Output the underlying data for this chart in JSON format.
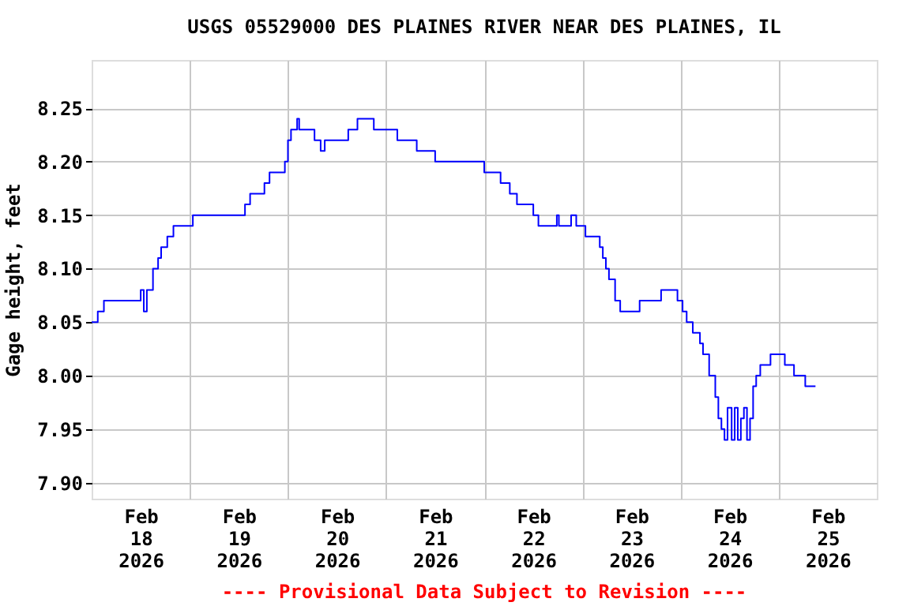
{
  "chart_data": {
    "type": "step",
    "title": "USGS 05529000 DES PLAINES RIVER NEAR DES PLAINES, IL",
    "ylabel": "Gage height, feet",
    "annotations": [
      "---- Provisional Data Subject to Revision ----"
    ],
    "x": [
      "2026-02-18T00:00",
      "2026-02-18T01:30",
      "2026-02-18T03:00",
      "2026-02-18T11:30",
      "2026-02-18T12:00",
      "2026-02-18T12:45",
      "2026-02-18T13:30",
      "2026-02-18T14:15",
      "2026-02-18T15:00",
      "2026-02-18T16:15",
      "2026-02-18T17:00",
      "2026-02-18T18:30",
      "2026-02-18T20:00",
      "2026-02-18T23:30",
      "2026-02-19T00:45",
      "2026-02-19T13:15",
      "2026-02-19T13:30",
      "2026-02-19T14:45",
      "2026-02-19T18:15",
      "2026-02-19T19:30",
      "2026-02-19T22:30",
      "2026-02-19T23:15",
      "2026-02-20T00:00",
      "2026-02-20T00:45",
      "2026-02-20T02:15",
      "2026-02-20T02:45",
      "2026-02-20T06:15",
      "2026-02-20T06:30",
      "2026-02-20T08:00",
      "2026-02-20T09:00",
      "2026-02-20T12:45",
      "2026-02-20T14:45",
      "2026-02-20T17:00",
      "2026-02-20T19:15",
      "2026-02-20T21:00",
      "2026-02-21T02:15",
      "2026-02-21T02:45",
      "2026-02-21T07:00",
      "2026-02-21T07:30",
      "2026-02-21T11:30",
      "2026-02-21T12:00",
      "2026-02-21T23:30",
      "2026-02-22T00:00",
      "2026-02-22T03:30",
      "2026-02-22T04:00",
      "2026-02-22T05:45",
      "2026-02-22T06:15",
      "2026-02-22T08:00",
      "2026-02-22T11:30",
      "2026-02-22T12:00",
      "2026-02-22T13:15",
      "2026-02-22T17:30",
      "2026-02-22T17:45",
      "2026-02-22T18:15",
      "2026-02-22T21:15",
      "2026-02-22T22:30",
      "2026-02-23T00:45",
      "2026-02-23T04:15",
      "2026-02-23T05:00",
      "2026-02-23T05:45",
      "2026-02-23T06:30",
      "2026-02-23T08:00",
      "2026-02-23T09:15",
      "2026-02-23T13:15",
      "2026-02-23T14:00",
      "2026-02-23T19:00",
      "2026-02-23T19:15",
      "2026-02-23T22:30",
      "2026-02-23T23:15",
      "2026-02-24T00:30",
      "2026-02-24T01:30",
      "2026-02-24T03:00",
      "2026-02-24T04:45",
      "2026-02-24T05:30",
      "2026-02-24T07:00",
      "2026-02-24T08:30",
      "2026-02-24T09:15",
      "2026-02-24T10:00",
      "2026-02-24T10:45",
      "2026-02-24T11:30",
      "2026-02-24T12:30",
      "2026-02-24T13:15",
      "2026-02-24T14:00",
      "2026-02-24T14:45",
      "2026-02-24T15:30",
      "2026-02-24T16:15",
      "2026-02-24T17:00",
      "2026-02-24T17:45",
      "2026-02-24T18:30",
      "2026-02-24T19:30",
      "2026-02-24T22:00",
      "2026-02-25T01:30",
      "2026-02-25T03:45",
      "2026-02-25T06:30",
      "2026-02-25T09:00"
    ],
    "series": [
      {
        "color": "#0000ff",
        "values": [
          8.05,
          8.06,
          8.07,
          8.07,
          8.08,
          8.06,
          8.08,
          8.08,
          8.1,
          8.11,
          8.12,
          8.13,
          8.14,
          8.14,
          8.15,
          8.15,
          8.16,
          8.17,
          8.18,
          8.19,
          8.19,
          8.2,
          8.22,
          8.23,
          8.24,
          8.23,
          8.23,
          8.22,
          8.21,
          8.22,
          8.22,
          8.23,
          8.24,
          8.24,
          8.23,
          8.23,
          8.22,
          8.22,
          8.21,
          8.21,
          8.2,
          8.2,
          8.19,
          8.19,
          8.18,
          8.18,
          8.17,
          8.16,
          8.16,
          8.15,
          8.14,
          8.14,
          8.15,
          8.14,
          8.15,
          8.14,
          8.13,
          8.12,
          8.11,
          8.1,
          8.09,
          8.07,
          8.06,
          8.06,
          8.07,
          8.07,
          8.08,
          8.08,
          8.07,
          8.06,
          8.05,
          8.04,
          8.03,
          8.02,
          8.0,
          7.98,
          7.96,
          7.95,
          7.94,
          7.97,
          7.94,
          7.97,
          7.94,
          7.96,
          7.97,
          7.94,
          7.96,
          7.99,
          8.0,
          8.01,
          8.02,
          8.01,
          8.0,
          7.99,
          7.99
        ]
      }
    ],
    "xlim": [
      "2026-02-18T00:00",
      "2026-02-26T00:00"
    ],
    "xticks": [
      {
        "value": "2026-02-18T12:00",
        "label": "Feb 18 2026"
      },
      {
        "value": "2026-02-19T00:00",
        "label": null
      },
      {
        "value": "2026-02-19T12:00",
        "label": "Feb 19 2026"
      },
      {
        "value": "2026-02-20T00:00",
        "label": null
      },
      {
        "value": "2026-02-20T12:00",
        "label": "Feb 20 2026"
      },
      {
        "value": "2026-02-21T00:00",
        "label": null
      },
      {
        "value": "2026-02-21T12:00",
        "label": "Feb 21 2026"
      },
      {
        "value": "2026-02-22T00:00",
        "label": null
      },
      {
        "value": "2026-02-22T12:00",
        "label": "Feb 22 2026"
      },
      {
        "value": "2026-02-23T00:00",
        "label": null
      },
      {
        "value": "2026-02-23T12:00",
        "label": "Feb 23 2026"
      },
      {
        "value": "2026-02-24T00:00",
        "label": null
      },
      {
        "value": "2026-02-24T12:00",
        "label": "Feb 24 2026"
      },
      {
        "value": "2026-02-25T00:00",
        "label": null
      },
      {
        "value": "2026-02-25T12:00",
        "label": "Feb 25 2026"
      }
    ],
    "ylim": [
      7.885,
      8.295
    ],
    "yticks": [
      {
        "value": 7.9,
        "label": "7.90"
      },
      {
        "value": 7.95,
        "label": "7.95"
      },
      {
        "value": 8.0,
        "label": "8.00"
      },
      {
        "value": 8.05,
        "label": "8.05"
      },
      {
        "value": 8.1,
        "label": "8.10"
      },
      {
        "value": 8.15,
        "label": "8.15"
      },
      {
        "value": 8.2,
        "label": "8.20"
      },
      {
        "value": 8.25,
        "label": "8.25"
      }
    ],
    "grid": true,
    "legend": false
  }
}
